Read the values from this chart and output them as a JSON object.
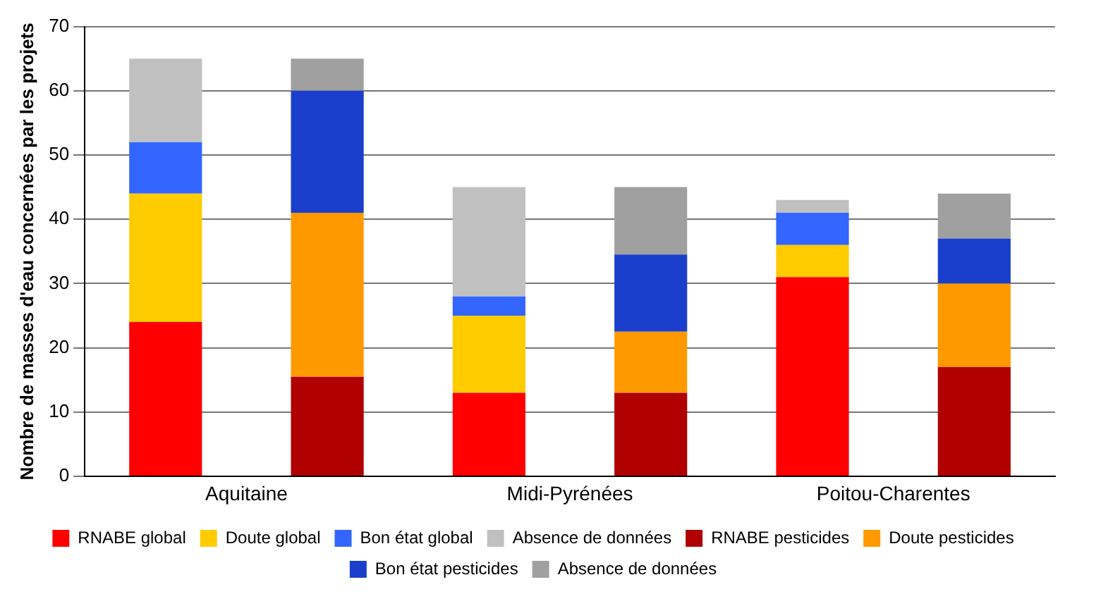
{
  "chart_data": {
    "type": "bar",
    "stacked": true,
    "ylabel": "Nombre de masses d'eau concernées par les projets",
    "categories": [
      "Aquitaine",
      null,
      "Midi-Pyrénées",
      null,
      "Poitou-Charentes",
      null
    ],
    "series": [
      {
        "name": "RNABE global",
        "color": "#ff0000",
        "values": [
          24,
          null,
          13,
          null,
          31,
          null
        ]
      },
      {
        "name": "Doute global",
        "color": "#ffcc00",
        "values": [
          20,
          null,
          12,
          null,
          5,
          null
        ]
      },
      {
        "name": "Bon état global",
        "color": "#3366ff",
        "values": [
          8,
          null,
          3,
          null,
          5,
          null
        ]
      },
      {
        "name": "Absence de données",
        "color": "#c0c0c0",
        "values": [
          13,
          null,
          17,
          null,
          2,
          null
        ]
      },
      {
        "name": "RNABE pesticides",
        "color": "#b00000",
        "values": [
          null,
          15.5,
          null,
          13,
          null,
          17
        ]
      },
      {
        "name": "Doute pesticides",
        "color": "#ff9900",
        "values": [
          null,
          25.5,
          null,
          9.5,
          null,
          13
        ]
      },
      {
        "name": "Bon état pesticides",
        "color": "#1a3fcc",
        "values": [
          null,
          19,
          null,
          12,
          null,
          7
        ]
      },
      {
        "name": "Absence de données",
        "color": "#a0a0a0",
        "values": [
          null,
          5,
          null,
          10.5,
          null,
          7
        ]
      }
    ],
    "ylim": [
      0,
      70
    ],
    "yticks": [
      0,
      10,
      20,
      30,
      40,
      50,
      60,
      70
    ],
    "grid": "y",
    "legend": "bottom"
  }
}
